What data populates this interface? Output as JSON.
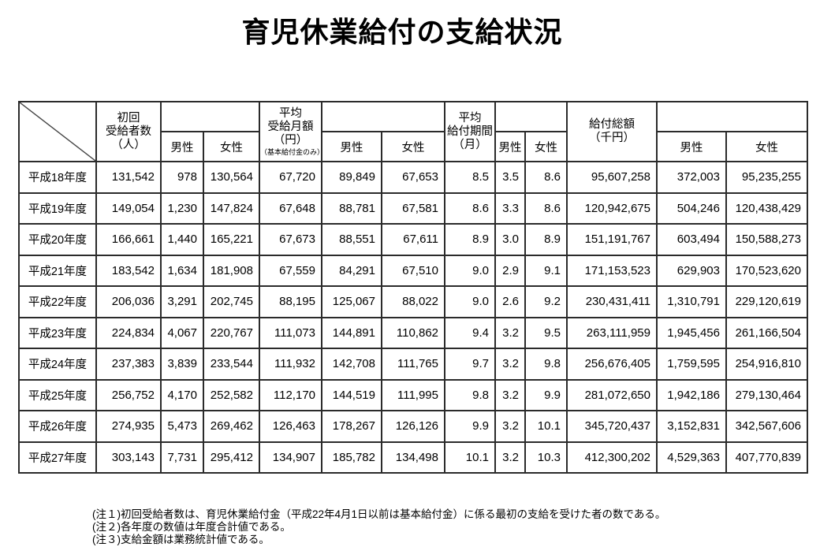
{
  "page": {
    "title": "育児休業給付の支給状況"
  },
  "colors": {
    "background": "#ffffff",
    "border": "#2b2b2b",
    "text": "#000000"
  },
  "table": {
    "header": {
      "group1_label": "初回\n受給者数\n（人）",
      "group2_label": "平均\n受給月額\n（円）",
      "group2_sub": "（基本給付金のみ）",
      "group3_label": "平均\n給付期間\n（月）",
      "group4_label": "給付総額\n（千円）",
      "male": "男性",
      "female": "女性"
    },
    "rows": [
      {
        "year": "平成18年度",
        "values": [
          "131,542",
          "978",
          "130,564",
          "67,720",
          "89,849",
          "67,653",
          "8.5",
          "3.5",
          "8.6",
          "95,607,258",
          "372,003",
          "95,235,255"
        ]
      },
      {
        "year": "平成19年度",
        "values": [
          "149,054",
          "1,230",
          "147,824",
          "67,648",
          "88,781",
          "67,581",
          "8.6",
          "3.3",
          "8.6",
          "120,942,675",
          "504,246",
          "120,438,429"
        ]
      },
      {
        "year": "平成20年度",
        "values": [
          "166,661",
          "1,440",
          "165,221",
          "67,673",
          "88,551",
          "67,611",
          "8.9",
          "3.0",
          "8.9",
          "151,191,767",
          "603,494",
          "150,588,273"
        ]
      },
      {
        "year": "平成21年度",
        "values": [
          "183,542",
          "1,634",
          "181,908",
          "67,559",
          "84,291",
          "67,510",
          "9.0",
          "2.9",
          "9.1",
          "171,153,523",
          "629,903",
          "170,523,620"
        ]
      },
      {
        "year": "平成22年度",
        "values": [
          "206,036",
          "3,291",
          "202,745",
          "88,195",
          "125,067",
          "88,022",
          "9.0",
          "2.6",
          "9.2",
          "230,431,411",
          "1,310,791",
          "229,120,619"
        ]
      },
      {
        "year": "平成23年度",
        "values": [
          "224,834",
          "4,067",
          "220,767",
          "111,073",
          "144,891",
          "110,862",
          "9.4",
          "3.2",
          "9.5",
          "263,111,959",
          "1,945,456",
          "261,166,504"
        ]
      },
      {
        "year": "平成24年度",
        "values": [
          "237,383",
          "3,839",
          "233,544",
          "111,932",
          "142,708",
          "111,765",
          "9.7",
          "3.2",
          "9.8",
          "256,676,405",
          "1,759,595",
          "254,916,810"
        ]
      },
      {
        "year": "平成25年度",
        "values": [
          "256,752",
          "4,170",
          "252,582",
          "112,170",
          "144,519",
          "111,995",
          "9.8",
          "3.2",
          "9.9",
          "281,072,650",
          "1,942,186",
          "279,130,464"
        ]
      },
      {
        "year": "平成26年度",
        "values": [
          "274,935",
          "5,473",
          "269,462",
          "126,463",
          "178,267",
          "126,126",
          "9.9",
          "3.2",
          "10.1",
          "345,720,437",
          "3,152,831",
          "342,567,606"
        ]
      },
      {
        "year": "平成27年度",
        "values": [
          "303,143",
          "7,731",
          "295,412",
          "134,907",
          "185,782",
          "134,498",
          "10.1",
          "3.2",
          "10.3",
          "412,300,202",
          "4,529,363",
          "407,770,839"
        ]
      }
    ]
  },
  "footnotes": [
    "(注１)初回受給者数は、育児休業給付金（平成22年4月1日以前は基本給付金）に係る最初の支給を受けた者の数である。",
    "(注２)各年度の数値は年度合計値である。",
    "(注３)支給金額は業務統計値である。"
  ]
}
